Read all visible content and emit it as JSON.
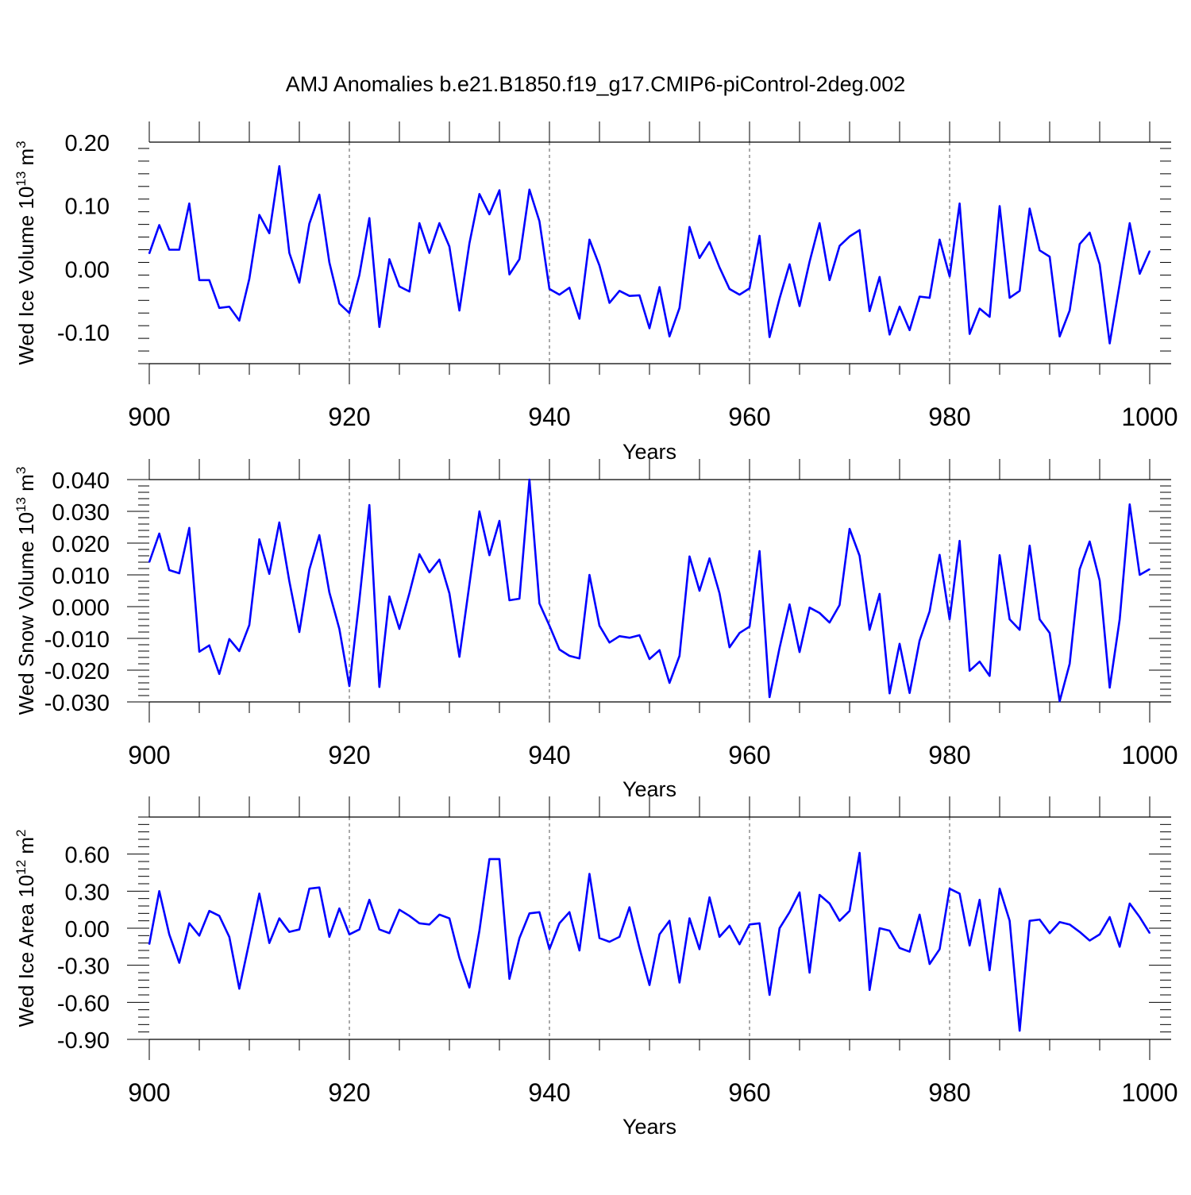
{
  "title": "AMJ Anomalies b.e21.B1850.f19_g17.CMIP6-piControl-2deg.002",
  "line_color": "#0000ff",
  "chart_data": [
    {
      "type": "line",
      "ylabel_main": "Wed Ice Volume 10",
      "ylabel_exp": "13",
      "ylabel_unit": " m",
      "ylabel_unit_exp": "3",
      "xlabel": "Years",
      "xlim": [
        900,
        1000
      ],
      "ylim": [
        -0.15,
        0.2
      ],
      "yticks": [
        0.2,
        0.1,
        0.0,
        -0.1
      ],
      "ytick_labels": [
        "0.20",
        "0.10",
        "0.00",
        "-0.10"
      ],
      "xticks": [
        900,
        920,
        940,
        960,
        980,
        1000
      ],
      "xtick_labels": [
        "900",
        "920",
        "940",
        "960",
        "980",
        "1000"
      ],
      "grid_x": [
        920,
        940,
        960,
        980
      ],
      "x_start": 900,
      "series": [
        {
          "values": [
            0.024,
            0.069,
            0.03,
            0.03,
            0.103,
            -0.018,
            -0.018,
            -0.062,
            -0.06,
            -0.082,
            -0.016,
            0.085,
            0.056,
            0.162,
            0.025,
            -0.022,
            0.071,
            0.117,
            0.01,
            -0.055,
            -0.07,
            -0.01,
            0.08,
            -0.092,
            0.015,
            -0.028,
            -0.036,
            0.072,
            0.025,
            0.072,
            0.035,
            -0.066,
            0.04,
            0.118,
            0.086,
            0.124,
            -0.009,
            0.015,
            0.125,
            0.075,
            -0.032,
            -0.041,
            -0.03,
            -0.079,
            0.046,
            0.005,
            -0.054,
            -0.035,
            -0.043,
            -0.042,
            -0.094,
            -0.029,
            -0.107,
            -0.062,
            0.066,
            0.017,
            0.042,
            0.002,
            -0.032,
            -0.041,
            -0.031,
            0.052,
            -0.108,
            -0.047,
            0.007,
            -0.059,
            0.011,
            0.072,
            -0.018,
            0.036,
            0.051,
            0.061,
            -0.067,
            -0.013,
            -0.104,
            -0.06,
            -0.097,
            -0.044,
            -0.046,
            0.046,
            -0.012,
            0.103,
            -0.103,
            -0.063,
            -0.076,
            0.099,
            -0.046,
            -0.035,
            0.095,
            0.029,
            0.019,
            -0.107,
            -0.066,
            0.039,
            0.057,
            0.007,
            -0.118,
            -0.024,
            0.072,
            -0.008,
            0.028
          ]
        }
      ]
    },
    {
      "type": "line",
      "ylabel_main": "Wed Snow Volume 10",
      "ylabel_exp": "13",
      "ylabel_unit": " m",
      "ylabel_unit_exp": "3",
      "xlabel": "Years",
      "xlim": [
        900,
        1000
      ],
      "ylim": [
        -0.03,
        0.04
      ],
      "yticks": [
        0.04,
        0.03,
        0.02,
        0.01,
        0.0,
        -0.01,
        -0.02,
        -0.03
      ],
      "ytick_labels": [
        "0.040",
        "0.030",
        "0.020",
        "0.010",
        "0.000",
        "-0.010",
        "-0.020",
        "-0.030"
      ],
      "xticks": [
        900,
        920,
        940,
        960,
        980,
        1000
      ],
      "xtick_labels": [
        "900",
        "920",
        "940",
        "960",
        "980",
        "1000"
      ],
      "grid_x": [
        920,
        940,
        960,
        980
      ],
      "x_start": 900,
      "series": [
        {
          "values": [
            0.014,
            0.023,
            0.0115,
            0.0105,
            0.0248,
            -0.0142,
            -0.0122,
            -0.0212,
            -0.0102,
            -0.014,
            -0.0058,
            0.0212,
            0.0103,
            0.0265,
            0.008,
            -0.008,
            0.0117,
            0.0225,
            0.0045,
            -0.007,
            -0.025,
            0.002,
            0.032,
            -0.0253,
            0.0032,
            -0.007,
            0.0042,
            0.0165,
            0.0108,
            0.0148,
            0.0042,
            -0.0158,
            0.007,
            0.03,
            0.0162,
            0.027,
            0.002,
            0.0025,
            0.04,
            0.001,
            -0.006,
            -0.0135,
            -0.0155,
            -0.0163,
            0.01,
            -0.006,
            -0.0113,
            -0.0093,
            -0.0098,
            -0.009,
            -0.0165,
            -0.0137,
            -0.024,
            -0.0155,
            0.0158,
            0.005,
            0.0152,
            0.0042,
            -0.0128,
            -0.0083,
            -0.0063,
            0.0175,
            -0.0285,
            -0.013,
            0.0007,
            -0.0143,
            -0.0003,
            -0.002,
            -0.005,
            0.0005,
            0.0245,
            0.016,
            -0.0073,
            0.004,
            -0.0273,
            -0.0117,
            -0.0272,
            -0.0107,
            -0.0015,
            0.0163,
            -0.004,
            0.0207,
            -0.0202,
            -0.0173,
            -0.0218,
            0.0162,
            -0.004,
            -0.0073,
            0.0192,
            -0.004,
            -0.0083,
            -0.0298,
            -0.018,
            0.0118,
            0.0205,
            0.0082,
            -0.0255,
            -0.004,
            0.0322,
            0.01,
            0.0118
          ]
        }
      ]
    },
    {
      "type": "line",
      "ylabel_main": "Wed Ice Area 10",
      "ylabel_exp": "12",
      "ylabel_unit": " m",
      "ylabel_unit_exp": "2",
      "xlabel": "Years",
      "xlim": [
        900,
        1000
      ],
      "ylim": [
        -0.9,
        0.9
      ],
      "yticks": [
        0.6,
        0.3,
        0.0,
        -0.3,
        -0.6,
        -0.9
      ],
      "ytick_labels": [
        "0.60",
        "0.30",
        "0.00",
        "-0.30",
        "-0.60",
        "-0.90"
      ],
      "xticks": [
        900,
        920,
        940,
        960,
        980,
        1000
      ],
      "xtick_labels": [
        "900",
        "920",
        "940",
        "960",
        "980",
        "1000"
      ],
      "grid_x": [
        920,
        940,
        960,
        980
      ],
      "x_start": 900,
      "series": [
        {
          "values": [
            -0.13,
            0.3,
            -0.05,
            -0.28,
            0.04,
            -0.06,
            0.14,
            0.1,
            -0.07,
            -0.49,
            -0.11,
            0.28,
            -0.12,
            0.08,
            -0.03,
            -0.01,
            0.32,
            0.33,
            -0.07,
            0.16,
            -0.05,
            -0.01,
            0.23,
            -0.01,
            -0.04,
            0.15,
            0.1,
            0.04,
            0.03,
            0.11,
            0.08,
            -0.24,
            -0.48,
            -0.02,
            0.56,
            0.56,
            -0.41,
            -0.08,
            0.12,
            0.13,
            -0.17,
            0.04,
            0.13,
            -0.18,
            0.44,
            -0.08,
            -0.11,
            -0.07,
            0.17,
            -0.16,
            -0.46,
            -0.05,
            0.06,
            -0.44,
            0.08,
            -0.17,
            0.25,
            -0.07,
            0.02,
            -0.13,
            0.03,
            0.04,
            -0.54,
            0.0,
            0.13,
            0.29,
            -0.36,
            0.27,
            0.2,
            0.06,
            0.14,
            0.61,
            -0.5,
            0.0,
            -0.02,
            -0.16,
            -0.19,
            0.11,
            -0.29,
            -0.17,
            0.32,
            0.28,
            -0.14,
            0.23,
            -0.34,
            0.32,
            0.06,
            -0.83,
            0.06,
            0.07,
            -0.04,
            0.05,
            0.03,
            -0.03,
            -0.1,
            -0.05,
            0.09,
            -0.15,
            0.2,
            0.09,
            -0.04
          ]
        }
      ]
    }
  ]
}
